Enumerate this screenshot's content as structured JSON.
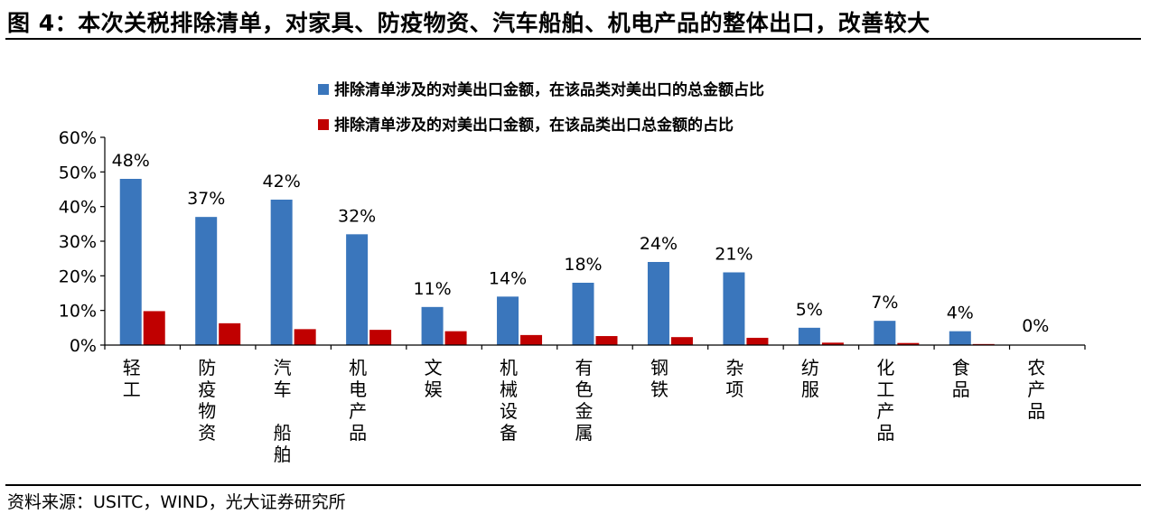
{
  "title": "图 4：本次关税排除清单，对家具、防疫物资、汽车船舶、机电产品的整体出口，改善较大",
  "source": "资料来源：USITC，WIND，光大证券研究所",
  "chart_data": {
    "type": "bar",
    "categories": [
      "轻工",
      "防疫物资",
      "汽车　船舶",
      "机电产品",
      "文娱",
      "机械设备",
      "有色金属",
      "钢铁",
      "杂项",
      "纺服",
      "化工产品",
      "食品",
      "农产品"
    ],
    "series": [
      {
        "name": "排除清单涉及的对美出口金额，在该品类对美出口的总金额占比",
        "color": "#3a76bc",
        "values": [
          48,
          37,
          42,
          32,
          11,
          14,
          18,
          24,
          21,
          5,
          7,
          4,
          0
        ],
        "labels": [
          "48%",
          "37%",
          "42%",
          "32%",
          "11%",
          "14%",
          "18%",
          "24%",
          "21%",
          "5%",
          "7%",
          "4%",
          "0%"
        ]
      },
      {
        "name": "排除清单涉及的对美出口金额，在该品类出口总金额的占比",
        "color": "#c00000",
        "values": [
          9.8,
          6.3,
          4.6,
          4.4,
          4.0,
          2.9,
          2.6,
          2.3,
          2.1,
          0.7,
          0.6,
          0.3,
          0
        ]
      }
    ],
    "yticks": [
      "0%",
      "10%",
      "20%",
      "30%",
      "40%",
      "50%",
      "60%"
    ],
    "ylim": [
      0,
      60
    ],
    "legend_position": "top-center",
    "grid": false
  }
}
